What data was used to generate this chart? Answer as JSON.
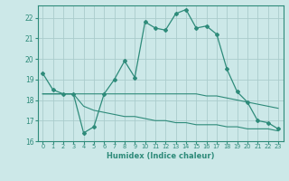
{
  "xlabel": "Humidex (Indice chaleur)",
  "x_values": [
    0,
    1,
    2,
    3,
    4,
    5,
    6,
    7,
    8,
    9,
    10,
    11,
    12,
    13,
    14,
    15,
    16,
    17,
    18,
    19,
    20,
    21,
    22,
    23
  ],
  "line1_y": [
    19.3,
    18.5,
    18.3,
    18.3,
    16.4,
    16.7,
    18.3,
    19.0,
    19.9,
    19.1,
    21.8,
    21.5,
    21.4,
    22.2,
    22.4,
    21.5,
    21.6,
    21.2,
    19.5,
    18.4,
    17.9,
    17.0,
    16.9,
    16.6
  ],
  "line2_y": [
    18.3,
    18.3,
    18.3,
    18.3,
    17.7,
    17.5,
    17.4,
    17.3,
    17.2,
    17.2,
    17.1,
    17.0,
    17.0,
    16.9,
    16.9,
    16.8,
    16.8,
    16.8,
    16.7,
    16.7,
    16.6,
    16.6,
    16.6,
    16.5
  ],
  "line3_y": [
    18.3,
    18.3,
    18.3,
    18.3,
    18.3,
    18.3,
    18.3,
    18.3,
    18.3,
    18.3,
    18.3,
    18.3,
    18.3,
    18.3,
    18.3,
    18.3,
    18.2,
    18.2,
    18.1,
    18.0,
    17.9,
    17.8,
    17.7,
    17.6
  ],
  "line_color": "#2e8b7a",
  "bg_color": "#cce8e8",
  "grid_color": "#aacccc",
  "ylim": [
    16,
    22.6
  ],
  "yticks": [
    16,
    17,
    18,
    19,
    20,
    21,
    22
  ],
  "xlim": [
    -0.5,
    23.5
  ]
}
